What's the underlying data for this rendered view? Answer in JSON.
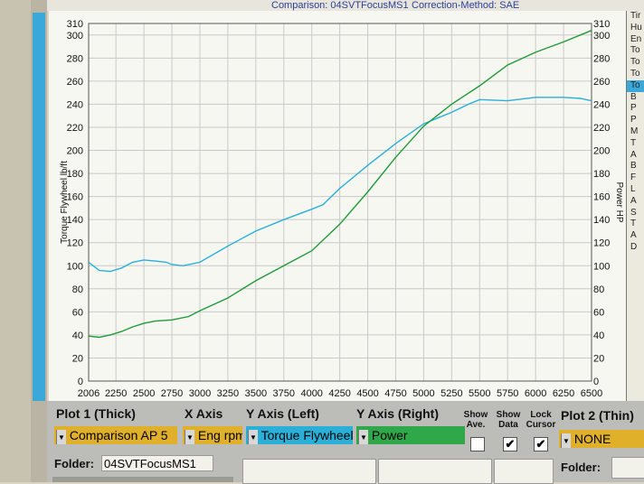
{
  "header": {
    "comparison_text": "Comparison: 04SVTFocusMS1",
    "correction_text": "Correction-Method: SAE"
  },
  "right_panel_items": [
    "Tir",
    "Hu",
    "En",
    "To",
    "To",
    "To",
    "To",
    "B",
    "P",
    "P",
    "M",
    "T",
    "A",
    "B",
    "F",
    "L",
    "A",
    "S",
    "T",
    "A",
    "D"
  ],
  "controls": {
    "plot1_label": "Plot 1 (Thick)",
    "plot1_value": "Comparison AP 5",
    "xaxis_label": "X Axis",
    "xaxis_value": "Eng rpm",
    "yleft_label": "Y Axis (Left)",
    "yleft_value": "Torque Flywheel",
    "yright_label": "Y Axis (Right)",
    "yright_value": "Power",
    "show_ave_label": "Show Ave.",
    "show_data_label": "Show Data",
    "lock_cursor_label": "Lock Cursor",
    "show_ave_checked": false,
    "show_data_checked": true,
    "lock_cursor_checked": true,
    "check_glyph": "✔",
    "plot2_label": "Plot 2 (Thin)",
    "plot2_value": "NONE",
    "folder_label": "Folder:",
    "folder_value": "04SVTFocusMS1",
    "folder2_label": "Folder:",
    "dropdown_glyph": "▼"
  },
  "colors": {
    "torque_line": "#2ab0d8",
    "power_line": "#1f9a3a",
    "plot1_field": "#e0b02a",
    "xaxis_field": "#e0b02a",
    "yleft_field": "#2ab0d8",
    "yright_field": "#2fa84a",
    "plot2_field": "#e0b02a",
    "grid": "#c9c9c9",
    "plot_bg": "#f7f7f1"
  },
  "chart_data": {
    "type": "line",
    "xlabel": "",
    "ylabel": "Torque Flywheel lb/ft",
    "y2label": "Power HP",
    "x_ticks": [
      2006,
      2250,
      2500,
      2750,
      3000,
      3250,
      3500,
      3750,
      4000,
      4250,
      4500,
      4750,
      5000,
      5250,
      5500,
      5750,
      6000,
      6250,
      6500
    ],
    "xlim": [
      2006,
      6500
    ],
    "ylim": [
      0,
      310
    ],
    "y2lim": [
      0,
      310
    ],
    "y_ticks": [
      0,
      20,
      40,
      60,
      80,
      100,
      120,
      140,
      160,
      180,
      200,
      220,
      240,
      260,
      280,
      300,
      310
    ],
    "y2_ticks": [
      0,
      20,
      40,
      60,
      80,
      100,
      120,
      140,
      160,
      180,
      200,
      220,
      240,
      260,
      280,
      300,
      310
    ],
    "grid": true,
    "series": [
      {
        "name": "Torque Flywheel",
        "axis": "left",
        "x": [
          2006,
          2100,
          2200,
          2300,
          2400,
          2500,
          2600,
          2700,
          2750,
          2850,
          3000,
          3250,
          3500,
          3750,
          4000,
          4100,
          4250,
          4500,
          4750,
          5000,
          5250,
          5400,
          5500,
          5750,
          6000,
          6250,
          6400,
          6500
        ],
        "y": [
          103,
          96,
          95,
          98,
          103,
          105,
          104,
          103,
          101,
          100,
          103,
          117,
          130,
          140,
          149,
          153,
          167,
          187,
          206,
          223,
          233,
          240,
          244,
          243,
          246,
          246,
          245,
          243
        ]
      },
      {
        "name": "Power",
        "axis": "right",
        "x": [
          2006,
          2100,
          2200,
          2300,
          2400,
          2500,
          2600,
          2750,
          2900,
          3000,
          3250,
          3500,
          3750,
          4000,
          4250,
          4500,
          4750,
          5000,
          5250,
          5500,
          5750,
          6000,
          6250,
          6400,
          6500
        ],
        "y": [
          39,
          38,
          40,
          43,
          47,
          50,
          52,
          53,
          56,
          61,
          72,
          87,
          100,
          113,
          136,
          164,
          194,
          221,
          240,
          256,
          274,
          285,
          294,
          300,
          304
        ]
      }
    ]
  }
}
